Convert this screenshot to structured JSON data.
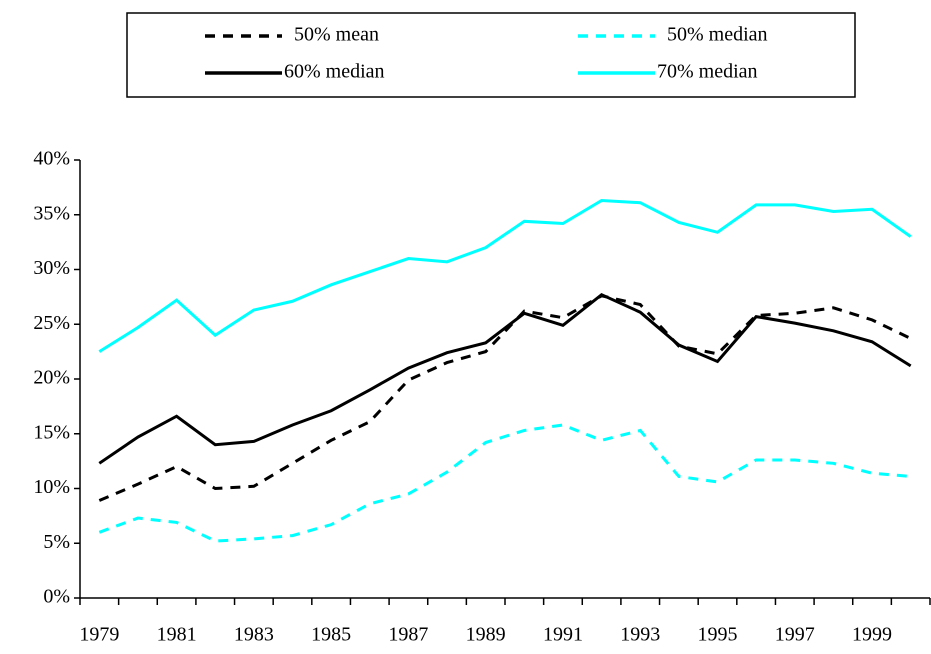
{
  "chart_data": {
    "type": "line",
    "categories": [
      "1979",
      null,
      "1981",
      null,
      "1983",
      null,
      "1985",
      null,
      "1987",
      null,
      "1989",
      null,
      "1991",
      null,
      "1993",
      null,
      "1995",
      null,
      "1997",
      null,
      "1999",
      null
    ],
    "series": [
      {
        "name": "50% mean",
        "color": "#000000",
        "dashed": true,
        "values": [
          8.9,
          10.4,
          12.0,
          10.0,
          10.2,
          12.3,
          14.4,
          16.1,
          19.9,
          21.5,
          22.5,
          26.2,
          25.6,
          27.6,
          26.8,
          23.0,
          22.3,
          25.8,
          26.0,
          26.5,
          25.4,
          23.7
        ]
      },
      {
        "name": "50% median",
        "color": "#00ffff",
        "dashed": true,
        "values": [
          6.0,
          7.3,
          6.9,
          5.2,
          5.4,
          5.7,
          6.7,
          8.6,
          9.5,
          11.5,
          14.2,
          15.3,
          15.8,
          14.4,
          15.3,
          11.1,
          10.6,
          12.6,
          12.6,
          12.3,
          11.4,
          11.1
        ]
      },
      {
        "name": "60% median",
        "color": "#000000",
        "dashed": false,
        "values": [
          12.3,
          14.7,
          16.6,
          14.0,
          14.3,
          15.8,
          17.1,
          19.0,
          21.0,
          22.4,
          23.3,
          26.0,
          24.9,
          27.7,
          26.1,
          23.1,
          21.6,
          25.7,
          25.1,
          24.4,
          23.4,
          21.2
        ]
      },
      {
        "name": "70% median",
        "color": "#00ffff",
        "dashed": false,
        "values": [
          22.5,
          24.7,
          27.2,
          24.0,
          26.3,
          27.1,
          28.6,
          29.8,
          31.0,
          30.7,
          32.0,
          34.4,
          34.2,
          36.3,
          36.1,
          34.3,
          33.4,
          35.9,
          35.9,
          35.3,
          35.5,
          33.0
        ]
      }
    ],
    "ylim": [
      0,
      40
    ],
    "yticks": [
      {
        "value": 0,
        "label": "0%"
      },
      {
        "value": 5,
        "label": "5%"
      },
      {
        "value": 10,
        "label": "10%"
      },
      {
        "value": 15,
        "label": "15%"
      },
      {
        "value": 20,
        "label": "20%"
      },
      {
        "value": 25,
        "label": "25%"
      },
      {
        "value": 30,
        "label": "30%"
      },
      {
        "value": 35,
        "label": "35%"
      },
      {
        "value": 40,
        "label": "40%"
      }
    ],
    "grid": false
  }
}
